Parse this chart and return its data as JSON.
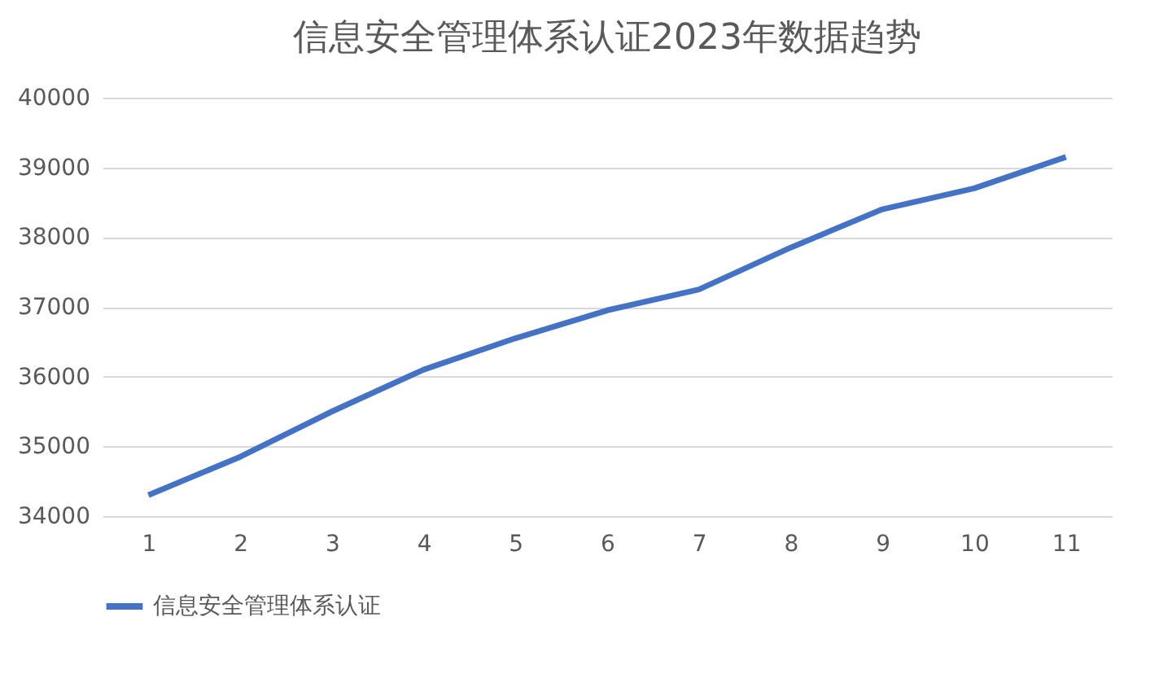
{
  "chart_data": {
    "type": "line",
    "title": "信息安全管理体系认证2023年数据趋势",
    "categories": [
      "1",
      "2",
      "3",
      "4",
      "5",
      "6",
      "7",
      "8",
      "9",
      "10",
      "11"
    ],
    "series": [
      {
        "name": "信息安全管理体系认证",
        "color": "#4472c4",
        "values": [
          34300,
          34850,
          35500,
          36100,
          36550,
          36950,
          37250,
          37850,
          38400,
          38700,
          39150
        ]
      }
    ],
    "ylim": [
      34000,
      40000
    ],
    "yticks": [
      34000,
      35000,
      36000,
      37000,
      38000,
      39000,
      40000
    ],
    "grid": "y",
    "legend": "bottom",
    "marker": "none",
    "line_style": "solid"
  }
}
